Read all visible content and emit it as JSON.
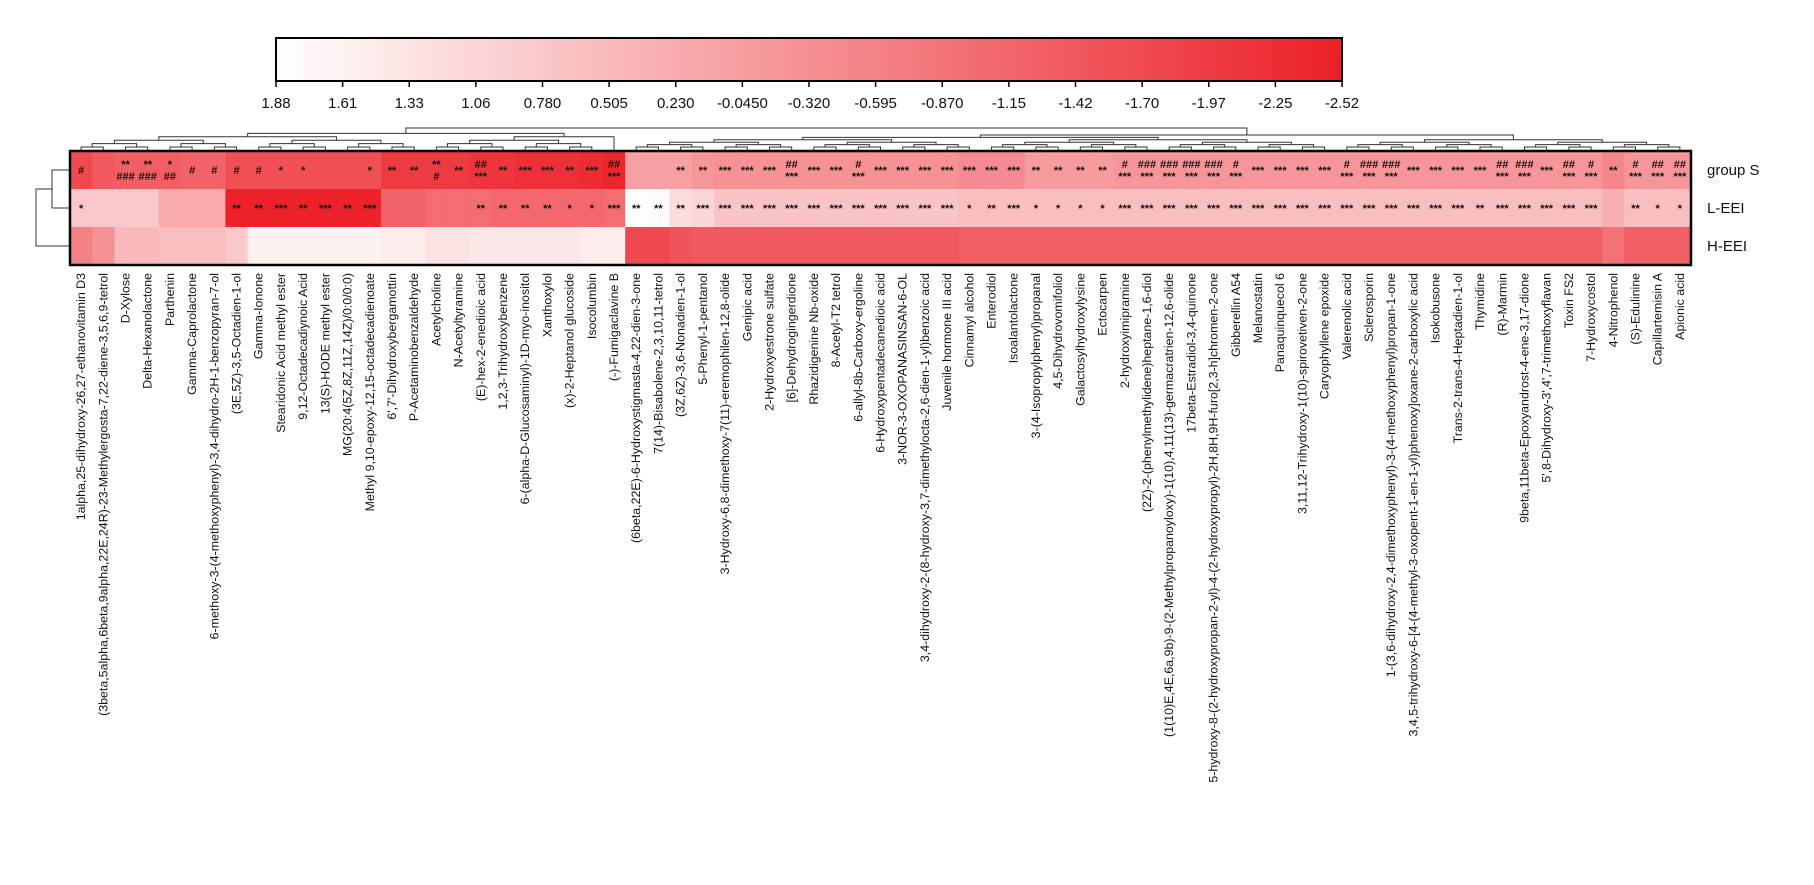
{
  "chart_data": {
    "type": "heatmap",
    "title": "",
    "color_scale": {
      "ticks": [
        "1.88",
        "1.61",
        "1.33",
        "1.06",
        "0.780",
        "0.505",
        "0.230",
        "-0.0450",
        "-0.320",
        "-0.595",
        "-0.870",
        "-1.15",
        "-1.42",
        "-1.70",
        "-1.97",
        "-2.25",
        "-2.52"
      ],
      "range": [
        1.88,
        -2.52
      ],
      "low_color": "#ffffff",
      "high_color": "#ec2028"
    },
    "rows": [
      "group S",
      "L-EEI",
      "H-EEI"
    ],
    "columns": [
      "1alpha,25-dihydroxy-26,27-ethanovitamin D3",
      "(3beta,5alpha,6beta,9alpha,22E,24R)-23-Methylergosta-7,22-diene-3,5,6,9-tetrol",
      "D-Xylose",
      "Delta-Hexanolactone",
      "Parthenin",
      "Gamma-Caprolactone",
      "6-methoxy-3-(4-methoxyphenyl)-3,4-dihydro-2H-1-benzopyran-7-ol",
      "(3E,5Z)-3,5-Octadien-1-ol",
      "Gamma-Ionone",
      "Stearidonic Acid methyl ester",
      "9,12-Octadecadiynoic Acid",
      "13(S)-HODE methyl ester",
      "MG(20:4(5Z,8Z,11Z,14Z)/0:0/0:0)",
      "Methyl 9,10-epoxy-12,15-octadecadienoate",
      "6',7'-Dihydroxybergamottin",
      "P-Acetaminobenzaldehyde",
      "Acetylcholine",
      "N-Acetyltyramine",
      "(E)-hex-2-enedioic acid",
      "1,2,3-Trihydroxybenzene",
      "6-(alpha-D-Glucosaminyl)-1D-myo-inositol",
      "Xanthoxylol",
      "(x)-2-Heptanol glucoside",
      "Isocolumbin",
      "(-)-Fumigaclavine B",
      "(6beta,22E)-6-Hydroxystigmasta-4,22-dien-3-one",
      "7(14)-Bisabolene-2,3,10,11-tetrol",
      "(3Z,6Z)-3,6-Nonadien-1-ol",
      "5-Phenyl-1-pentanol",
      "3-Hydroxy-6,8-dimethoxy-7(11)-eremophilen-12,8-olide",
      "Genipic acid",
      "2-Hydroxyestrone sulfate",
      "[6]-Dehydrogingerdione",
      "Rhazidigenine Nb-oxide",
      "8-Acetyl-T2 tetrol",
      "6-allyl-8b-Carboxy-ergoline",
      "6-Hydroxypentadecanedioic acid",
      "3-NOR-3-OXOPANASINSAN-6-OL",
      "3,4-dihydroxy-2-(8-hydroxy-3,7-dimethylocta-2,6-dien-1-yl)benzoic acid",
      "Juvenile hormone III acid",
      "Cinnamyl alcohol",
      "Enterodiol",
      "Isoalantolactone",
      "3-(4-Isopropylphenyl)propanal",
      "4,5-Dihydrovomifoliol",
      "Galactosylhydroxylysine",
      "Ectocarpen",
      "2-hydroxyimipramine",
      "(2Z)-2-(phenylmethylidene)heptane-1,6-diol",
      "(1(10)E,4E,6a,9b)-9-(2-Methylpropanoyloxy)-1(10),4,11(13)-germacratrien-12,6-olide",
      "17beta-Estradiol-3,4-quinone",
      "5-hydroxy-8-(2-hydroxypropan-2-yl)-4-(2-hydroxypropyl)-2H,8H,9H-furo[2,3-h]chromen-2-one",
      "Gibberellin A54",
      "Melanostatin",
      "Panaquinquecol 6",
      "3,11,12-Trihydroxy-1(10)-spirovetiven-2-one",
      "Caryophyllene epoxide",
      "Valerenolic acid",
      "Sclerosporin",
      "1-(3,6-dihydroxy-2,4-dimethoxyphenyl)-3-(4-methoxyphenyl)propan-1-one",
      "3,4,5-trihydroxy-6-[4-(4-methyl-3-oxopent-1-en-1-yl)phenoxy]oxane-2-carboxylic acid",
      "Isokobusone",
      "Trans-2-trans-4-Heptadien-1-ol",
      "Thymidine",
      "(R)-Marmin",
      "9beta,11beta-Epoxyandrost-4-ene-3,17-dione",
      "5',8-Dihydroxy-3',4',7-trimethoxyflavan",
      "Toxin FS2",
      "7-Hydroxycostol",
      "4-Nitrophenol",
      "(S)-Edulinine",
      "Capillartemisin A",
      "Apionic acid"
    ],
    "values": [
      [
        -1.7,
        -1.4,
        -1.3,
        -1.3,
        -1.3,
        -1.2,
        -1.2,
        -1.6,
        -1.6,
        -1.6,
        -1.6,
        -1.6,
        -1.6,
        -1.6,
        -2.0,
        -2.0,
        -2.0,
        -2.0,
        -2.1,
        -2.1,
        -2.2,
        -2.2,
        -2.2,
        -2.3,
        -2.4,
        0.0,
        0.0,
        0.0,
        -0.2,
        -0.3,
        -0.3,
        -0.3,
        -0.3,
        -0.3,
        -0.3,
        -0.3,
        -0.3,
        -0.3,
        -0.3,
        -0.3,
        -0.4,
        -0.4,
        -0.4,
        -0.1,
        -0.1,
        -0.1,
        -0.1,
        -0.2,
        -0.2,
        -0.2,
        -0.2,
        -0.2,
        -0.2,
        -0.2,
        -0.2,
        -0.2,
        -0.2,
        -0.2,
        -0.2,
        -0.2,
        -0.2,
        -0.2,
        -0.2,
        -0.2,
        -0.2,
        -0.2,
        -0.2,
        -0.2,
        -0.2,
        -0.5,
        -0.2,
        -0.2,
        -0.2
      ],
      [
        0.8,
        0.8,
        0.8,
        0.8,
        0.2,
        0.2,
        0.2,
        -2.5,
        -2.5,
        -2.5,
        -2.5,
        -2.5,
        -2.5,
        -2.5,
        -1.2,
        -1.2,
        -1.0,
        -1.0,
        -1.0,
        -1.1,
        -1.1,
        -1.1,
        -1.1,
        -1.1,
        -1.0,
        1.9,
        1.8,
        1.2,
        1.1,
        0.7,
        0.7,
        0.7,
        0.7,
        0.7,
        0.7,
        0.7,
        0.7,
        0.7,
        0.7,
        0.7,
        0.6,
        0.6,
        0.6,
        0.6,
        0.6,
        0.6,
        0.6,
        0.6,
        0.6,
        0.6,
        0.6,
        0.6,
        0.6,
        0.6,
        0.6,
        0.6,
        0.6,
        0.6,
        0.6,
        0.6,
        0.6,
        0.6,
        0.6,
        0.6,
        0.6,
        0.6,
        0.6,
        0.6,
        0.6,
        0.3,
        0.6,
        0.6,
        0.6
      ],
      [
        -0.6,
        -0.3,
        0.5,
        0.5,
        0.6,
        0.6,
        0.6,
        0.8,
        1.6,
        1.6,
        1.6,
        1.6,
        1.6,
        1.6,
        1.5,
        1.5,
        1.3,
        1.3,
        1.4,
        1.4,
        1.4,
        1.4,
        1.4,
        1.5,
        1.5,
        -1.7,
        -1.7,
        -1.5,
        -1.4,
        -1.4,
        -1.4,
        -1.4,
        -1.4,
        -1.4,
        -1.4,
        -1.4,
        -1.4,
        -1.4,
        -1.4,
        -1.4,
        -1.3,
        -1.3,
        -1.3,
        -1.3,
        -1.3,
        -1.3,
        -1.3,
        -1.3,
        -1.3,
        -1.3,
        -1.3,
        -1.3,
        -1.3,
        -1.3,
        -1.3,
        -1.3,
        -1.3,
        -1.3,
        -1.3,
        -1.3,
        -1.3,
        -1.3,
        -1.3,
        -1.3,
        -1.3,
        -1.3,
        -1.3,
        -1.3,
        -1.3,
        -0.9,
        -1.3,
        -1.3,
        -1.3
      ]
    ],
    "significance": [
      [
        "#",
        "",
        "**|###",
        "**|###",
        "*|##",
        "#",
        "#",
        "#",
        "#",
        "*",
        "*",
        "",
        "",
        "*",
        "**",
        "**",
        "**|#",
        "**",
        "##|***",
        "**",
        "***",
        "***",
        "**",
        "***",
        "##|***",
        "",
        "",
        "**",
        "**",
        "***",
        "***",
        "***",
        "##|***",
        "***",
        "***",
        "#|***",
        "***",
        "***",
        "***",
        "***",
        "***",
        "***",
        "***",
        "**",
        "**",
        "**",
        "**",
        "#|***",
        "###|***",
        "###|***",
        "###|***",
        "###|***",
        "#|***",
        "***",
        "***",
        "***",
        "***",
        "#|***",
        "###|***",
        "###|***",
        "***",
        "***",
        "***",
        "***",
        "##|***",
        "###|***",
        "***",
        "##|***",
        "#|***",
        "**",
        "#|***",
        "##|***",
        "##|***"
      ],
      [
        "*",
        "",
        "",
        "",
        "",
        "",
        "",
        "**",
        "**",
        "***",
        "**",
        "***",
        "**",
        "***",
        "",
        "",
        "",
        "",
        "**",
        "**",
        "**",
        "**",
        "*",
        "*",
        "***",
        "**",
        "**",
        "**",
        "***",
        "***",
        "***",
        "***",
        "***",
        "***",
        "***",
        "***",
        "***",
        "***",
        "***",
        "***",
        "*",
        "**",
        "***",
        "*",
        "*",
        "*",
        "*",
        "***",
        "***",
        "***",
        "***",
        "***",
        "***",
        "***",
        "***",
        "***",
        "***",
        "***",
        "***",
        "***",
        "***",
        "***",
        "***",
        "**",
        "***",
        "***",
        "***",
        "***",
        "***",
        "",
        "**",
        "*",
        "*"
      ],
      [
        "",
        "",
        "",
        "",
        "",
        "",
        "",
        "",
        "",
        "",
        "",
        "",
        "",
        "",
        "",
        "",
        "",
        "",
        "",
        "",
        "",
        "",
        "",
        "",
        "",
        "",
        "",
        "",
        "",
        "",
        "",
        "",
        "",
        "",
        "",
        "",
        "",
        "",
        "",
        "",
        "",
        "",
        "",
        "",
        "",
        "",
        "",
        "",
        "",
        "",
        "",
        "",
        "",
        "",
        "",
        "",
        "",
        "",
        "",
        "",
        "",
        "",
        "",
        "",
        "",
        "",
        "",
        "",
        "",
        "",
        "",
        "",
        ""
      ]
    ],
    "legend_position": "top"
  }
}
